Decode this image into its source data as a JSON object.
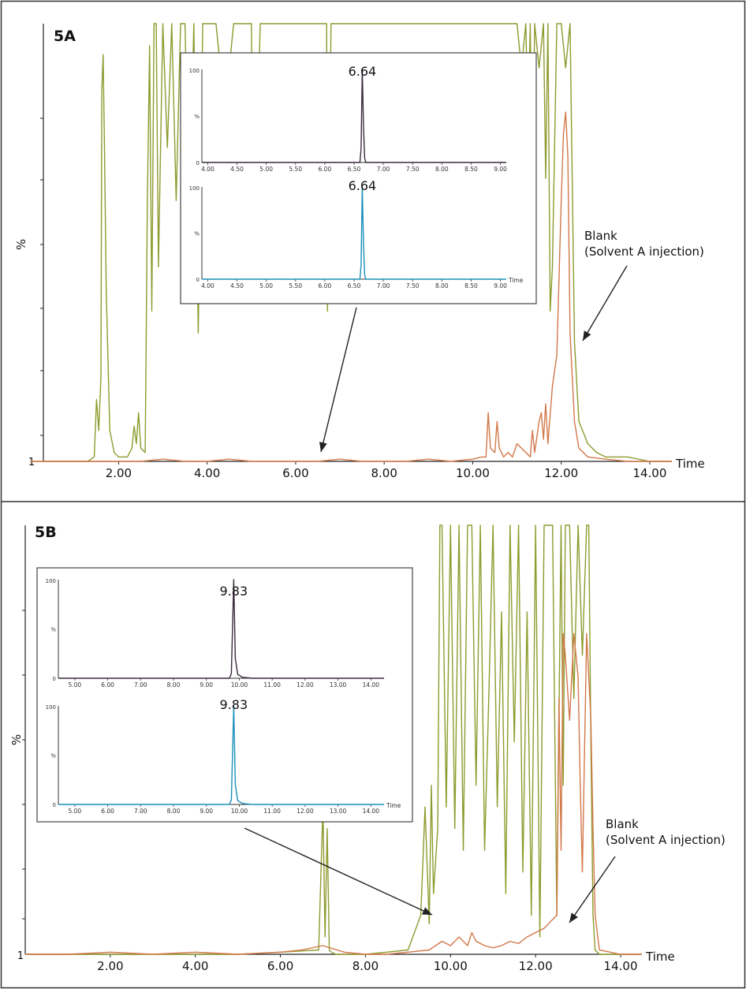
{
  "colors": {
    "sample_trace": "#8e9b2e",
    "blank_trace": "#d2784a",
    "inset_top_trace": "#3a2a3e",
    "inset_bottom_trace": "#1a90b8",
    "frame": "#333333",
    "axis": "#222222",
    "tick_text": "#111111"
  },
  "chart_data": [
    {
      "panel_label": "5A",
      "type": "line",
      "ylabel": "%",
      "xlabel": "Time",
      "y_baseline_label": "1",
      "xlim": [
        0.0,
        14.5
      ],
      "ylim": [
        0,
        100
      ],
      "xticks": [
        "2.00",
        "4.00",
        "6.00",
        "8.00",
        "10.00",
        "12.00",
        "14.00"
      ],
      "series": [
        {
          "role": "sample",
          "x": [
            0.0,
            1.3,
            1.45,
            1.5,
            1.55,
            1.6,
            1.62,
            1.65,
            1.68,
            1.72,
            1.8,
            1.9,
            2.0,
            2.1,
            2.2,
            2.3,
            2.35,
            2.4,
            2.45,
            2.5,
            2.6,
            2.65,
            2.7,
            2.75,
            2.8,
            2.85,
            2.9,
            3.0,
            3.1,
            3.2,
            3.3,
            3.4,
            3.5,
            3.6,
            3.7,
            3.8,
            3.9,
            4.0,
            4.2,
            4.4,
            4.6,
            4.8,
            5.0,
            5.05,
            5.2,
            5.4,
            5.6,
            5.8,
            6.0,
            6.2,
            6.4,
            6.6,
            6.7,
            6.72,
            6.8,
            7.0,
            7.5,
            8.0,
            8.5,
            9.0,
            9.5,
            10.0,
            10.5,
            11.0,
            11.1,
            11.2,
            11.25,
            11.3,
            11.35,
            11.4,
            11.5,
            11.6,
            11.65,
            11.7,
            11.75,
            11.8,
            11.9,
            12.0,
            12.1,
            12.15,
            12.2,
            12.3,
            12.4,
            12.6,
            12.8,
            13.0,
            13.5,
            14.0,
            14.5
          ],
          "y": [
            1,
            1,
            2,
            15,
            8,
            20,
            85,
            93,
            72,
            40,
            8,
            3,
            2,
            2,
            2,
            4,
            9,
            5,
            12,
            4,
            3,
            60,
            95,
            35,
            100,
            100,
            45,
            100,
            72,
            100,
            60,
            100,
            100,
            55,
            100,
            30,
            100,
            100,
            100,
            80,
            100,
            100,
            100,
            40,
            100,
            100,
            100,
            100,
            100,
            100,
            100,
            100,
            100,
            35,
            100,
            100,
            100,
            100,
            100,
            100,
            100,
            100,
            100,
            100,
            90,
            100,
            75,
            100,
            60,
            100,
            90,
            100,
            65,
            100,
            35,
            45,
            100,
            100,
            90,
            95,
            100,
            28,
            10,
            5,
            3,
            2,
            2,
            1,
            1
          ]
        },
        {
          "role": "blank",
          "x": [
            0.0,
            0.5,
            1.0,
            1.5,
            2.0,
            2.5,
            3.0,
            3.5,
            4.0,
            4.5,
            5.0,
            5.5,
            6.0,
            6.5,
            7.0,
            7.5,
            8.0,
            8.5,
            9.0,
            9.5,
            10.0,
            10.2,
            10.3,
            10.35,
            10.4,
            10.5,
            10.55,
            10.6,
            10.65,
            10.7,
            10.8,
            10.9,
            11.0,
            11.1,
            11.2,
            11.3,
            11.35,
            11.4,
            11.5,
            11.55,
            11.6,
            11.65,
            11.7,
            11.8,
            11.9,
            12.0,
            12.05,
            12.1,
            12.15,
            12.2,
            12.3,
            12.4,
            12.6,
            13.0,
            13.5,
            14.0,
            14.5
          ],
          "y": [
            1,
            1,
            1,
            1,
            1,
            1,
            1.5,
            1,
            1,
            1.5,
            1,
            1,
            1,
            1,
            1.5,
            1,
            1,
            1,
            1.5,
            1,
            1.5,
            2,
            2,
            12,
            4,
            3,
            10,
            4,
            3,
            2,
            3,
            2,
            5,
            4,
            3,
            2,
            8,
            3,
            10,
            12,
            6,
            14,
            5,
            18,
            25,
            60,
            75,
            80,
            70,
            30,
            10,
            4,
            2,
            1.5,
            1,
            1,
            1
          ]
        }
      ],
      "annotations": [
        {
          "text_lines": [
            "Blank",
            "(Solvent A injection)"
          ]
        }
      ],
      "inset": {
        "peak_label": "6.64",
        "xlabel": "Time",
        "xlim": [
          3.9,
          9.1
        ],
        "xticks": [
          "4.00",
          "4.50",
          "5.00",
          "5.50",
          "6.00",
          "6.50",
          "7.00",
          "7.50",
          "8.00",
          "8.50",
          "9.00"
        ],
        "y_max_label": "100",
        "y_mid_label": "%",
        "y_min_label": "0",
        "traces": [
          {
            "role": "top",
            "x": [
              3.9,
              6.6,
              6.62,
              6.64,
              6.66,
              6.68,
              6.7,
              9.1
            ],
            "y": [
              0,
              0,
              15,
              100,
              40,
              5,
              0,
              0
            ]
          },
          {
            "role": "bottom",
            "x": [
              3.9,
              6.6,
              6.62,
              6.64,
              6.66,
              6.68,
              6.7,
              9.1
            ],
            "y": [
              0,
              0,
              15,
              100,
              40,
              5,
              0,
              0
            ]
          }
        ]
      }
    },
    {
      "panel_label": "5B",
      "type": "line",
      "ylabel": "%",
      "xlabel": "Time",
      "y_baseline_label": "1",
      "xlim": [
        0.0,
        14.5
      ],
      "ylim": [
        0,
        100
      ],
      "xticks": [
        "2.00",
        "4.00",
        "6.00",
        "8.00",
        "10.00",
        "12.00",
        "14.00"
      ],
      "series": [
        {
          "role": "sample",
          "x": [
            0.0,
            1.0,
            2.0,
            3.0,
            4.0,
            5.0,
            6.0,
            6.9,
            7.0,
            7.05,
            7.1,
            7.15,
            7.2,
            7.3,
            7.5,
            8.0,
            8.5,
            9.0,
            9.3,
            9.4,
            9.5,
            9.55,
            9.6,
            9.7,
            9.75,
            9.8,
            9.9,
            10.0,
            10.1,
            10.2,
            10.3,
            10.4,
            10.5,
            10.6,
            10.7,
            10.8,
            10.9,
            11.0,
            11.1,
            11.2,
            11.3,
            11.4,
            11.5,
            11.6,
            11.7,
            11.8,
            11.9,
            12.0,
            12.1,
            12.2,
            12.3,
            12.4,
            12.5,
            12.6,
            12.65,
            12.7,
            12.8,
            12.9,
            13.0,
            13.1,
            13.2,
            13.25,
            13.3,
            13.35,
            13.4,
            13.5,
            14.0,
            14.5
          ],
          "y": [
            1,
            1,
            1,
            1,
            1,
            1,
            1.5,
            2,
            35,
            5,
            30,
            2,
            1.5,
            1,
            1,
            1,
            1.5,
            2,
            10,
            35,
            8,
            40,
            15,
            30,
            100,
            100,
            35,
            100,
            30,
            100,
            25,
            100,
            100,
            40,
            100,
            25,
            60,
            100,
            35,
            80,
            15,
            100,
            50,
            100,
            20,
            80,
            10,
            100,
            5,
            100,
            100,
            100,
            10,
            100,
            40,
            100,
            100,
            60,
            100,
            70,
            100,
            100,
            50,
            10,
            2,
            1,
            1,
            1
          ]
        },
        {
          "role": "blank",
          "x": [
            0.0,
            1.0,
            2.0,
            3.0,
            4.0,
            5.0,
            6.0,
            6.5,
            7.0,
            7.5,
            8.0,
            8.5,
            9.0,
            9.5,
            9.8,
            10.0,
            10.2,
            10.4,
            10.5,
            10.6,
            10.8,
            11.0,
            11.2,
            11.4,
            11.6,
            11.8,
            12.0,
            12.2,
            12.3,
            12.4,
            12.5,
            12.55,
            12.6,
            12.65,
            12.7,
            12.8,
            12.9,
            13.0,
            13.05,
            13.1,
            13.2,
            13.3,
            13.35,
            13.4,
            13.5,
            14.0,
            14.5
          ],
          "y": [
            1,
            1,
            1.5,
            1,
            1.5,
            1,
            1.5,
            2,
            3,
            1.5,
            1,
            1,
            1.5,
            2,
            4,
            3,
            5,
            3,
            6,
            4,
            3,
            2.5,
            3,
            4,
            3.5,
            5,
            6,
            7,
            8,
            9,
            10,
            60,
            25,
            75,
            70,
            55,
            75,
            65,
            40,
            20,
            75,
            55,
            30,
            10,
            2,
            1,
            1
          ]
        }
      ],
      "annotations": [
        {
          "text_lines": [
            "Blank",
            "(Solvent A injection)"
          ]
        }
      ],
      "inset": {
        "peak_label": "9.83",
        "xlabel": "Time",
        "xlim": [
          4.5,
          14.4
        ],
        "xticks": [
          "5.00",
          "6.00",
          "7.00",
          "8.00",
          "9.00",
          "10.00",
          "11.00",
          "12.00",
          "13.00",
          "14.00"
        ],
        "y_max_label": "100",
        "y_mid_label": "%",
        "y_min_label": "0",
        "traces": [
          {
            "role": "top",
            "x": [
              4.5,
              9.7,
              9.76,
              9.83,
              9.88,
              9.95,
              10.1,
              10.4,
              14.4
            ],
            "y": [
              0,
              0,
              5,
              100,
              20,
              4,
              1,
              0,
              0
            ]
          },
          {
            "role": "bottom",
            "x": [
              4.5,
              9.7,
              9.76,
              9.83,
              9.88,
              9.95,
              10.1,
              10.4,
              14.4
            ],
            "y": [
              0,
              0,
              5,
              100,
              20,
              4,
              1,
              0,
              0
            ]
          }
        ]
      }
    }
  ]
}
